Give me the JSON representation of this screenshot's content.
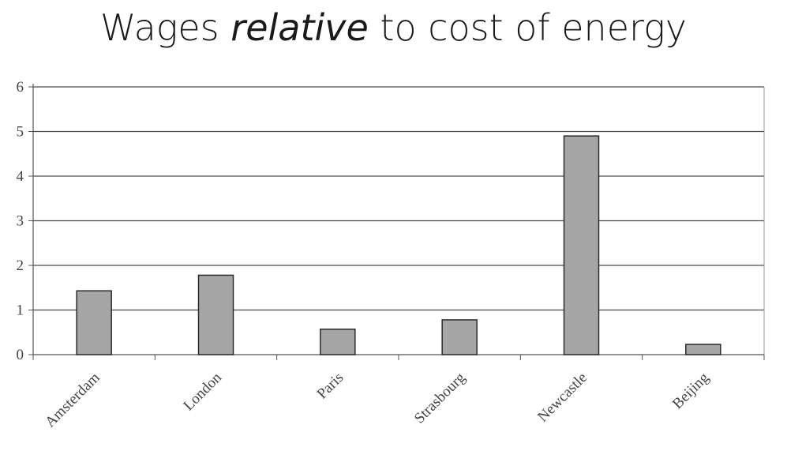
{
  "title": {
    "before": "Wages ",
    "emphasis": "relative",
    "after": " to cost of energy"
  },
  "chart_data": {
    "type": "bar",
    "title": "Wages relative to cost of energy",
    "xlabel": "",
    "ylabel": "",
    "categories": [
      "Amsterdam",
      "London",
      "Paris",
      "Strasbourg",
      "Newcastle",
      "Beijing"
    ],
    "values": [
      1.43,
      1.78,
      0.57,
      0.78,
      4.9,
      0.23
    ],
    "ylim": [
      0,
      6
    ],
    "yticks": [
      "0",
      "1",
      "2",
      "3",
      "4",
      "5",
      "6"
    ],
    "grid": true,
    "legend": "none",
    "bar_color": "#a6a6a6",
    "bar_edge_color": "#2a2a2a",
    "grid_color": "#4a4a4a"
  }
}
